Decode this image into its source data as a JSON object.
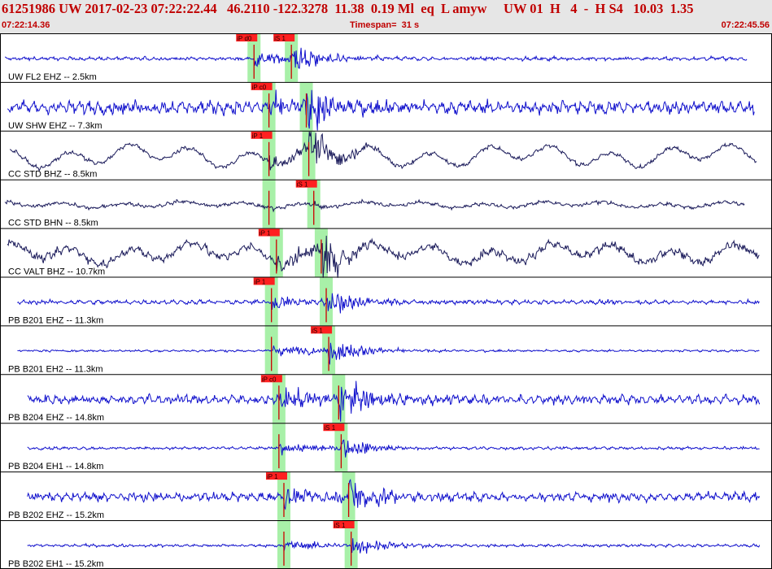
{
  "header": {
    "title": "61251986 UW 2017-02-23 07:22:22.44   46.2110 -122.3278  11.38  0.19 Ml  eq  L amyw     UW 01  H   4  -  H S4   10.03  1.35",
    "time_start": "07:22:14.36",
    "time_end": "07:22:45.56",
    "timespan": "Timespan=  31 s"
  },
  "colors": {
    "header_bg": "#e6e6e6",
    "header_text": "#c00000",
    "trace_blue": "#1010cc",
    "trace_navy": "#1a1a5a",
    "pick_flag": "#ff2020",
    "pick_line": "#cc0000",
    "pick_window": "#a8f0a8",
    "grid": "#000000",
    "label_text": "#000000"
  },
  "chart_data": {
    "type": "seismogram",
    "timespan_s": 31,
    "time_start": "07:22:14.36",
    "time_end": "07:22:45.56",
    "traces": [
      {
        "label": "UW FL2 EHZ -- 2.5km",
        "color": "blue",
        "picks": [
          {
            "label": "iP d0",
            "t": 10.2
          },
          {
            "label": "iS 1",
            "t": 11.7
          }
        ],
        "start_t": 0.2,
        "end_t": 30.0,
        "noise": 0.05,
        "event_amp": 0.55,
        "long_period": 0.0
      },
      {
        "label": "UW SHW EHZ -- 7.3km",
        "color": "blue",
        "picks": [
          {
            "label": "iP c0",
            "t": 10.8
          },
          {
            "label": "",
            "t": 12.3
          }
        ],
        "start_t": 0.3,
        "end_t": 30.3,
        "noise": 0.18,
        "event_amp": 0.85,
        "long_period": 0.0
      },
      {
        "label": "CC STD BHZ -- 8.5km",
        "color": "navy",
        "picks": [
          {
            "label": "iP 1",
            "t": 10.8
          },
          {
            "label": "",
            "t": 12.4
          }
        ],
        "start_t": 0.4,
        "end_t": 30.4,
        "noise": 0.06,
        "event_amp": 0.6,
        "long_period": 0.55
      },
      {
        "label": "CC STD BHN -- 8.5km",
        "color": "navy",
        "picks": [
          {
            "label": "",
            "t": 10.8
          },
          {
            "label": "iS 1",
            "t": 12.6
          }
        ],
        "start_t": 0.2,
        "end_t": 29.9,
        "noise": 0.05,
        "event_amp": 0.1,
        "long_period": 0.15
      },
      {
        "label": "CC VALT BHZ -- 10.7km",
        "color": "navy",
        "picks": [
          {
            "label": "iP 1",
            "t": 11.1
          },
          {
            "label": "",
            "t": 12.9
          }
        ],
        "start_t": 0.3,
        "end_t": 30.5,
        "noise": 0.12,
        "event_amp": 0.7,
        "long_period": 0.5
      },
      {
        "label": "PB B201 EHZ -- 11.3km",
        "color": "blue",
        "picks": [
          {
            "label": "iP 1",
            "t": 10.9
          },
          {
            "label": "",
            "t": 13.1
          }
        ],
        "start_t": 0.7,
        "end_t": 30.5,
        "noise": 0.06,
        "event_amp": 0.5,
        "long_period": 0.0
      },
      {
        "label": "PB B201 EH2 -- 11.3km",
        "color": "blue",
        "picks": [
          {
            "label": "",
            "t": 10.9
          },
          {
            "label": "iS 1",
            "t": 13.2
          }
        ],
        "start_t": 0.7,
        "end_t": 30.5,
        "noise": 0.03,
        "event_amp": 0.45,
        "long_period": 0.0
      },
      {
        "label": "PB B204 EHZ -- 14.8km",
        "color": "blue",
        "picks": [
          {
            "label": "iP c0",
            "t": 11.2
          },
          {
            "label": "",
            "t": 13.6
          }
        ],
        "start_t": 1.1,
        "end_t": 30.5,
        "noise": 0.13,
        "event_amp": 0.7,
        "long_period": 0.0
      },
      {
        "label": "PB B204 EH1 -- 14.8km",
        "color": "blue",
        "picks": [
          {
            "label": "",
            "t": 11.2
          },
          {
            "label": "iS 1",
            "t": 13.7
          }
        ],
        "start_t": 1.1,
        "end_t": 30.5,
        "noise": 0.04,
        "event_amp": 0.35,
        "long_period": 0.0
      },
      {
        "label": "PB B202 EHZ -- 15.2km",
        "color": "blue",
        "picks": [
          {
            "label": "iP 1",
            "t": 11.4
          },
          {
            "label": "",
            "t": 14.0
          }
        ],
        "start_t": 1.1,
        "end_t": 30.5,
        "noise": 0.12,
        "event_amp": 0.65,
        "long_period": 0.0
      },
      {
        "label": "PB B202 EH1 -- 15.2km",
        "color": "blue",
        "picks": [
          {
            "label": "",
            "t": 11.4
          },
          {
            "label": "iS 1",
            "t": 14.1
          }
        ],
        "start_t": 1.1,
        "end_t": 30.5,
        "noise": 0.04,
        "event_amp": 0.35,
        "long_period": 0.0
      }
    ]
  }
}
